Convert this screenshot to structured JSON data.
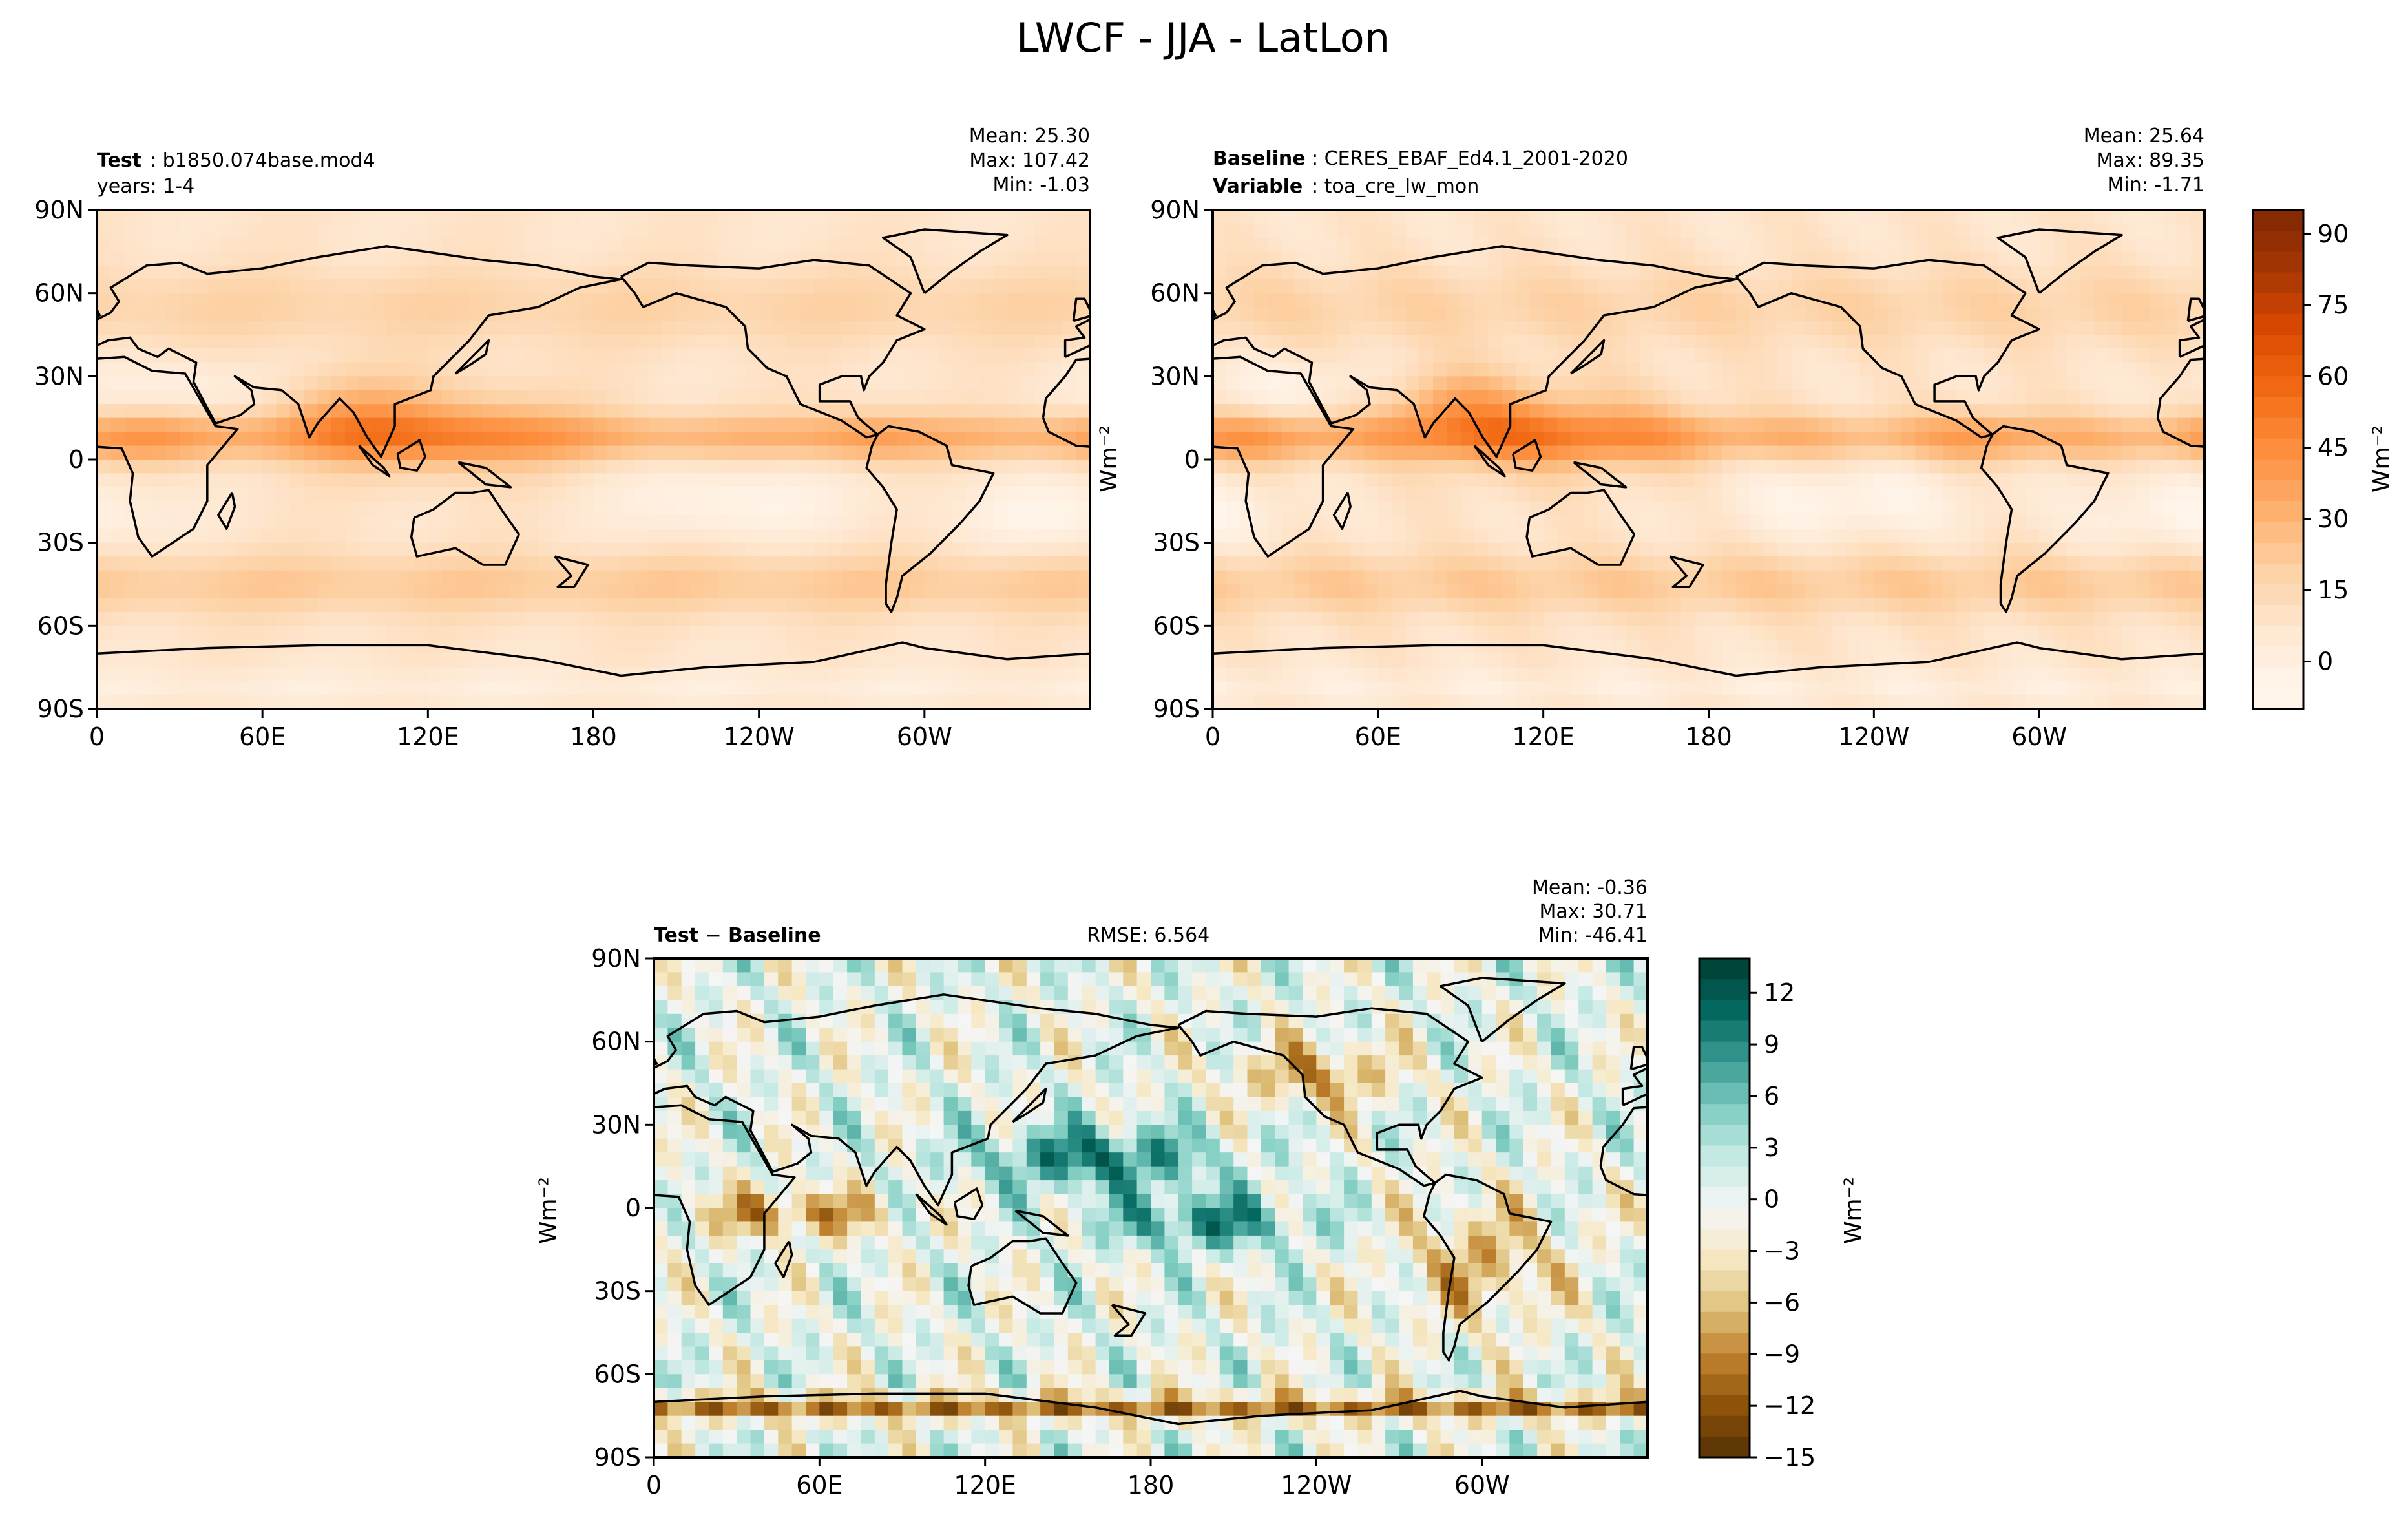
{
  "figure": {
    "title": "LWCF - JJA - LatLon"
  },
  "chart_data": [
    {
      "type": "heatmap",
      "panel": "test",
      "label_bold": "Test",
      "label_rest": ": b1850.074base.mod4",
      "subtitle": "years: 1-4",
      "stats": [
        "Mean: 25.30",
        "Max: 107.42",
        "Min: -1.03"
      ],
      "mean": 25.3,
      "max": 107.42,
      "min": -1.03,
      "xticks": [
        "0",
        "60E",
        "120E",
        "180",
        "120W",
        "60W"
      ],
      "xtick_values": [
        0,
        60,
        120,
        180,
        240,
        300
      ],
      "yticks": [
        "90N",
        "60N",
        "30N",
        "0",
        "30S",
        "60S",
        "90S"
      ],
      "ytick_values": [
        90,
        60,
        30,
        0,
        -30,
        -60,
        -90
      ],
      "xlim": [
        0,
        360
      ],
      "ylim": [
        -90,
        90
      ],
      "ylabel": "",
      "colormap": "Oranges"
    },
    {
      "type": "heatmap",
      "panel": "baseline",
      "label_bold": "Baseline",
      "label_rest": ": CERES_EBAF_Ed4.1_2001-2020",
      "label2_bold": "Variable",
      "label2_rest": ": toa_cre_lw_mon",
      "stats": [
        "Mean: 25.64",
        "Max: 89.35",
        "Min: -1.71"
      ],
      "mean": 25.64,
      "max": 89.35,
      "min": -1.71,
      "xticks": [
        "0",
        "60E",
        "120E",
        "180",
        "120W",
        "60W"
      ],
      "xtick_values": [
        0,
        60,
        120,
        180,
        240,
        300
      ],
      "yticks": [
        "90N",
        "60N",
        "30N",
        "0",
        "30S",
        "60S",
        "90S"
      ],
      "ytick_values": [
        90,
        60,
        30,
        0,
        -30,
        -60,
        -90
      ],
      "xlim": [
        0,
        360
      ],
      "ylim": [
        -90,
        90
      ],
      "ylabel": "Wm⁻²",
      "colormap": "Oranges",
      "colorbar": {
        "ticks": [
          "90",
          "75",
          "60",
          "45",
          "30",
          "15",
          "0"
        ],
        "tick_values": [
          90,
          75,
          60,
          45,
          30,
          15,
          0
        ],
        "range": [
          -10,
          95
        ],
        "label": "Wm⁻²"
      }
    },
    {
      "type": "heatmap",
      "panel": "difference",
      "label_bold": "Test − Baseline",
      "center_label": "RMSE: 6.564",
      "rmse": 6.564,
      "stats": [
        "Mean: -0.36",
        "Max: 30.71",
        "Min: -46.41"
      ],
      "mean": -0.36,
      "max": 30.71,
      "min": -46.41,
      "xticks": [
        "0",
        "60E",
        "120E",
        "180",
        "120W",
        "60W"
      ],
      "xtick_values": [
        0,
        60,
        120,
        180,
        240,
        300
      ],
      "yticks": [
        "90N",
        "60N",
        "30N",
        "0",
        "30S",
        "60S",
        "90S"
      ],
      "ytick_values": [
        90,
        60,
        30,
        0,
        -30,
        -60,
        -90
      ],
      "xlim": [
        0,
        360
      ],
      "ylim": [
        -90,
        90
      ],
      "ylabel": "Wm⁻²",
      "colormap": "BrBG",
      "colorbar": {
        "ticks": [
          "12",
          "9",
          "6",
          "3",
          "0",
          "−3",
          "−6",
          "−9",
          "−12",
          "−15"
        ],
        "tick_values": [
          12,
          9,
          6,
          3,
          0,
          -3,
          -6,
          -9,
          -12,
          -15
        ],
        "range": [
          -15,
          14
        ],
        "label": "Wm⁻²"
      }
    }
  ],
  "colors": {
    "oranges": [
      "#fff5eb",
      "#fee6ce",
      "#fdd0a2",
      "#fdae6b",
      "#fd8d3c",
      "#f16913",
      "#d94801",
      "#a63603",
      "#7f2704"
    ],
    "brbg": [
      "#543005",
      "#8c510a",
      "#bf812d",
      "#dfc27d",
      "#f6e8c3",
      "#f5f5f5",
      "#c7eae5",
      "#80cdc1",
      "#35978f",
      "#01665e",
      "#003c30"
    ],
    "coast": "#000000"
  }
}
